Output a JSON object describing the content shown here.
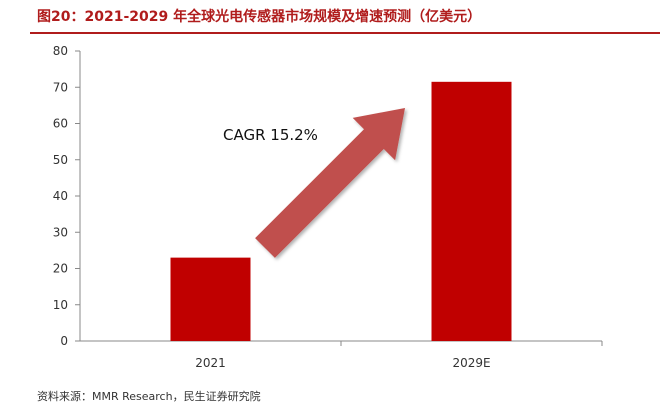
{
  "title": "图20：2021-2029 年全球光电传感器市场规模及增速预测（亿美元）",
  "source": "资料来源：MMR Research，民生证券研究院",
  "colors": {
    "bar": "#c00000",
    "arrow": "#c0504d",
    "title": "#b01c1c"
  },
  "chart_data": {
    "type": "bar",
    "categories": [
      "2021",
      "2029E"
    ],
    "values": [
      23,
      71.5
    ],
    "ylim": [
      0,
      80
    ],
    "yticks": [
      0,
      10,
      20,
      30,
      40,
      50,
      60,
      70,
      80
    ],
    "grid": false,
    "legend": "none",
    "annotation": "CAGR 15.2%"
  }
}
